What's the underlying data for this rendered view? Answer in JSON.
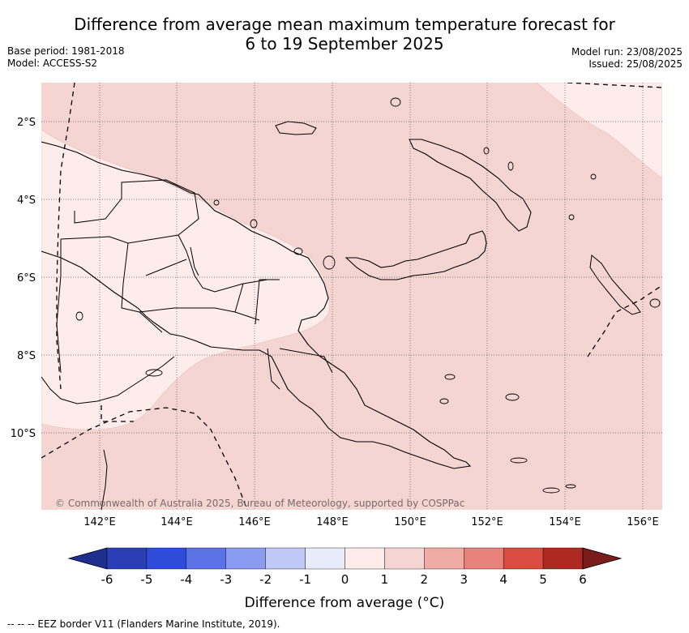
{
  "title": {
    "line1": "Difference from average mean maximum temperature forecast for",
    "line2": "6 to 19 September 2025"
  },
  "meta_left": {
    "base_period": "Base period: 1981-2018",
    "model": "Model: ACCESS-S2"
  },
  "meta_right": {
    "model_run": "Model run: 23/08/2025",
    "issued": "Issued: 25/08/2025"
  },
  "map": {
    "lat_labels": [
      "2°S",
      "4°S",
      "6°S",
      "8°S",
      "10°S"
    ],
    "lon_labels": [
      "142°E",
      "144°E",
      "146°E",
      "148°E",
      "150°E",
      "152°E",
      "154°E",
      "156°E"
    ],
    "copyright": "© Commonwealth of Australia 2025, Bureau of Meteorology, supported by COSPPac",
    "colors": {
      "band_1_2": "#f5d5d2",
      "band_0_1": "#fdecea",
      "coast": "#000000",
      "grid": "#555555"
    }
  },
  "colorbar": {
    "ticks": [
      "-6",
      "-5",
      "-4",
      "-3",
      "-2",
      "-1",
      "0",
      "1",
      "2",
      "3",
      "4",
      "5",
      "6"
    ],
    "colors": [
      "#1e2f8e",
      "#2a3fb5",
      "#2f4bdc",
      "#5b72e6",
      "#8a9cef",
      "#c0c8f5",
      "#e8ebfa",
      "#fdecea",
      "#f5d5d2",
      "#efaca5",
      "#e7817a",
      "#da4c40",
      "#ad2a22",
      "#7a1c1c"
    ],
    "title": "Difference from average (°C)"
  },
  "footer": {
    "legend": "--  --  -- EEZ border V11 (Flanders Marine Institute, 2019)."
  }
}
